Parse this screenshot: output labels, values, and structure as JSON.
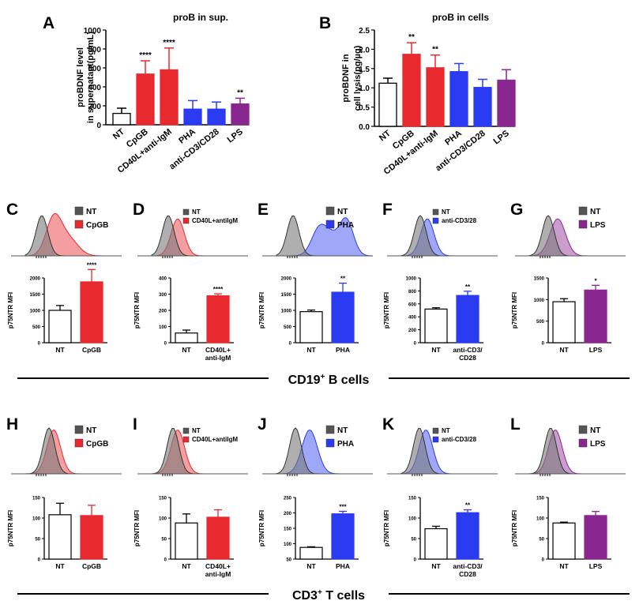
{
  "chart_data": [
    {
      "id": "A",
      "type": "bar",
      "panel_label": "A",
      "title": "proB in sup.",
      "ylabel_lines": [
        "proBDNF level",
        "in supernatant(pg/mL)"
      ],
      "ylim": [
        0,
        1000
      ],
      "yticks": [
        "0",
        "200",
        "400",
        "600",
        "800",
        "1000"
      ],
      "categories": [
        "NT",
        "CpGB",
        "CD40L+anti-IgM",
        "PHA",
        "anti-CD3/CD28",
        "LPS"
      ],
      "values": [
        120,
        535,
        580,
        165,
        165,
        220
      ],
      "errors": [
        55,
        140,
        230,
        90,
        75,
        60
      ],
      "colors": [
        "#ffffff",
        "#e8292e",
        "#e8292e",
        "#2b3bf2",
        "#2b3bf2",
        "#8a2690"
      ],
      "significance": [
        "",
        "****",
        "****",
        "",
        "",
        "**"
      ]
    },
    {
      "id": "B",
      "type": "bar",
      "panel_label": "B",
      "title": "proB in cells",
      "ylabel_lines": [
        "proBDNF in",
        "cell lysis(pg/µg)"
      ],
      "ylim": [
        0,
        2.5
      ],
      "yticks": [
        "0.0",
        "0.5",
        "1.0",
        "1.5",
        "2.0",
        "2.5"
      ],
      "categories": [
        "NT",
        "CpGB",
        "CD40L+anti-IgM",
        "PHA",
        "anti-CD3/CD28",
        "LPS"
      ],
      "values": [
        1.12,
        1.87,
        1.52,
        1.42,
        1.01,
        1.2
      ],
      "errors": [
        0.13,
        0.3,
        0.33,
        0.21,
        0.21,
        0.27
      ],
      "colors": [
        "#ffffff",
        "#e8292e",
        "#e8292e",
        "#2b3bf2",
        "#2b3bf2",
        "#8a2690"
      ],
      "significance": [
        "",
        "**",
        "**",
        "",
        "",
        ""
      ]
    },
    {
      "id": "C",
      "type": "bar",
      "panel_label": "C",
      "cell_type": "B",
      "legend": [
        "NT",
        "CpGB"
      ],
      "treat_color": "#e8292e",
      "ylabel": "p75NTR MFI",
      "ylim": [
        0,
        2000
      ],
      "yticks": [
        "0",
        "500",
        "1000",
        "1500",
        "2000"
      ],
      "categories": [
        "NT",
        "CpGB"
      ],
      "cat_lines": [
        [
          "NT"
        ],
        [
          "CpGB"
        ]
      ],
      "values": [
        1000,
        1880
      ],
      "errors": [
        150,
        380
      ],
      "significance": "****",
      "hist_nt": [
        35,
        30
      ],
      "hist_tr": [
        50,
        35
      ]
    },
    {
      "id": "D",
      "type": "bar",
      "panel_label": "D",
      "cell_type": "B",
      "legend": [
        "NT",
        "CD40L+antiIgM"
      ],
      "treat_color": "#e8292e",
      "ylabel": "p75NTR MFI",
      "ylim": [
        0,
        400
      ],
      "yticks": [
        "0",
        "100",
        "200",
        "300",
        "400"
      ],
      "categories": [
        "NT",
        "CD40L+ anti-IgM"
      ],
      "cat_lines": [
        [
          "NT"
        ],
        [
          "CD40L+",
          "anti-IgM"
        ]
      ],
      "values": [
        60,
        290
      ],
      "errors": [
        18,
        12
      ],
      "significance": "****",
      "hist_nt": [
        35,
        30
      ],
      "hist_tr": [
        45,
        30
      ]
    },
    {
      "id": "E",
      "type": "bar",
      "panel_label": "E",
      "cell_type": "B",
      "legend": [
        "NT",
        "PHA"
      ],
      "treat_color": "#2b3bf2",
      "ylabel": "p75NTR MFI",
      "ylim": [
        0,
        2000
      ],
      "yticks": [
        "0",
        "500",
        "1000",
        "1500",
        "2000"
      ],
      "categories": [
        "NT",
        "PHA"
      ],
      "cat_lines": [
        [
          "NT"
        ],
        [
          "PHA"
        ]
      ],
      "values": [
        960,
        1560
      ],
      "errors": [
        50,
        280
      ],
      "significance": "**",
      "hist_nt": [
        35,
        30
      ],
      "hist_tr": [
        55,
        60
      ]
    },
    {
      "id": "F",
      "type": "bar",
      "panel_label": "F",
      "cell_type": "B",
      "legend": [
        "NT",
        "anti-CD3/28"
      ],
      "treat_color": "#2b3bf2",
      "ylabel": "p75NTR MFI",
      "ylim": [
        0,
        1000
      ],
      "yticks": [
        "0",
        "200",
        "400",
        "600",
        "800",
        "1000"
      ],
      "categories": [
        "NT",
        "anti-CD3/ CD28"
      ],
      "cat_lines": [
        [
          "NT"
        ],
        [
          "anti-CD3/",
          "CD28"
        ]
      ],
      "values": [
        520,
        730
      ],
      "errors": [
        20,
        65
      ],
      "significance": "**",
      "hist_nt": [
        40,
        30
      ],
      "hist_tr": [
        45,
        30
      ]
    },
    {
      "id": "G",
      "type": "bar",
      "panel_label": "G",
      "cell_type": "B",
      "legend": [
        "NT",
        "LPS"
      ],
      "treat_color": "#8a2690",
      "ylabel": "p75NTR MFI",
      "ylim": [
        0,
        1500
      ],
      "yticks": [
        "0",
        "500",
        "1000",
        "1500"
      ],
      "categories": [
        "NT",
        "LPS"
      ],
      "cat_lines": [
        [
          "NT"
        ],
        [
          "LPS"
        ]
      ],
      "values": [
        950,
        1220
      ],
      "errors": [
        70,
        110
      ],
      "significance": "*",
      "hist_nt": [
        40,
        30
      ],
      "hist_tr": [
        50,
        35
      ]
    },
    {
      "id": "H",
      "type": "bar",
      "panel_label": "H",
      "cell_type": "T",
      "legend": [
        "NT",
        "CpGB"
      ],
      "treat_color": "#e8292e",
      "ylabel": "p75NTR MFI",
      "ylim": [
        0,
        150
      ],
      "yticks": [
        "0",
        "50",
        "100",
        "150"
      ],
      "categories": [
        "NT",
        "CpGB"
      ],
      "cat_lines": [
        [
          "NT"
        ],
        [
          "CpGB"
        ]
      ],
      "values": [
        108,
        106
      ],
      "errors": [
        28,
        25
      ],
      "significance": "",
      "hist_nt": [
        50,
        30
      ],
      "hist_tr": [
        50,
        31
      ]
    },
    {
      "id": "I",
      "type": "bar",
      "panel_label": "I",
      "cell_type": "T",
      "legend": [
        "NT",
        "CD40L+antiIgM"
      ],
      "treat_color": "#e8292e",
      "ylabel": "p75NTR MFI",
      "ylim": [
        0,
        150
      ],
      "yticks": [
        "0",
        "50",
        "100",
        "150"
      ],
      "categories": [
        "NT",
        "CD40L+ anti-IgM"
      ],
      "cat_lines": [
        [
          "NT"
        ],
        [
          "CD40L+",
          "anti-IgM"
        ]
      ],
      "values": [
        88,
        102
      ],
      "errors": [
        22,
        18
      ],
      "significance": "",
      "hist_nt": [
        45,
        30
      ],
      "hist_tr": [
        45,
        31
      ]
    },
    {
      "id": "J",
      "type": "bar",
      "panel_label": "J",
      "cell_type": "T",
      "legend": [
        "NT",
        "PHA"
      ],
      "treat_color": "#2b3bf2",
      "ylabel": "p75NTR MFI",
      "ylim": [
        50,
        250
      ],
      "yticks": [
        "50",
        "100",
        "150",
        "200",
        "250"
      ],
      "categories": [
        "NT",
        "PHA"
      ],
      "cat_lines": [
        [
          "NT"
        ],
        [
          "PHA"
        ]
      ],
      "values": [
        88,
        197
      ],
      "errors": [
        2,
        8
      ],
      "significance": "***",
      "hist_nt": [
        40,
        30
      ],
      "hist_tr": [
        60,
        35
      ]
    },
    {
      "id": "K",
      "type": "bar",
      "panel_label": "K",
      "cell_type": "T",
      "legend": [
        "NT",
        "anti-CD3/28"
      ],
      "treat_color": "#2b3bf2",
      "ylabel": "p75NTR MFI",
      "ylim": [
        0,
        150
      ],
      "yticks": [
        "0",
        "50",
        "100",
        "150"
      ],
      "categories": [
        "NT",
        "anti-CD3/ CD28"
      ],
      "cat_lines": [
        [
          "NT"
        ],
        [
          "anti-CD3/",
          "CD28"
        ]
      ],
      "values": [
        74,
        113
      ],
      "errors": [
        6,
        7
      ],
      "significance": "**",
      "hist_nt": [
        38,
        30
      ],
      "hist_tr": [
        42,
        31
      ]
    },
    {
      "id": "L",
      "type": "bar",
      "panel_label": "L",
      "cell_type": "T",
      "legend": [
        "NT",
        "LPS"
      ],
      "treat_color": "#8a2690",
      "ylabel": "p75NTR MFI",
      "ylim": [
        0,
        150
      ],
      "yticks": [
        "0",
        "50",
        "100",
        "150"
      ],
      "categories": [
        "NT",
        "LPS"
      ],
      "cat_lines": [
        [
          "NT"
        ],
        [
          "LPS"
        ]
      ],
      "values": [
        88,
        106
      ],
      "errors": [
        2,
        10
      ],
      "significance": "",
      "hist_nt": [
        45,
        30
      ],
      "hist_tr": [
        45,
        31
      ]
    }
  ],
  "sections": {
    "b_cells": {
      "prefix": "CD19",
      "sup": "+",
      "suffix": " B cells"
    },
    "t_cells": {
      "prefix": "CD3",
      "sup": "+",
      "suffix": " T cells"
    }
  }
}
